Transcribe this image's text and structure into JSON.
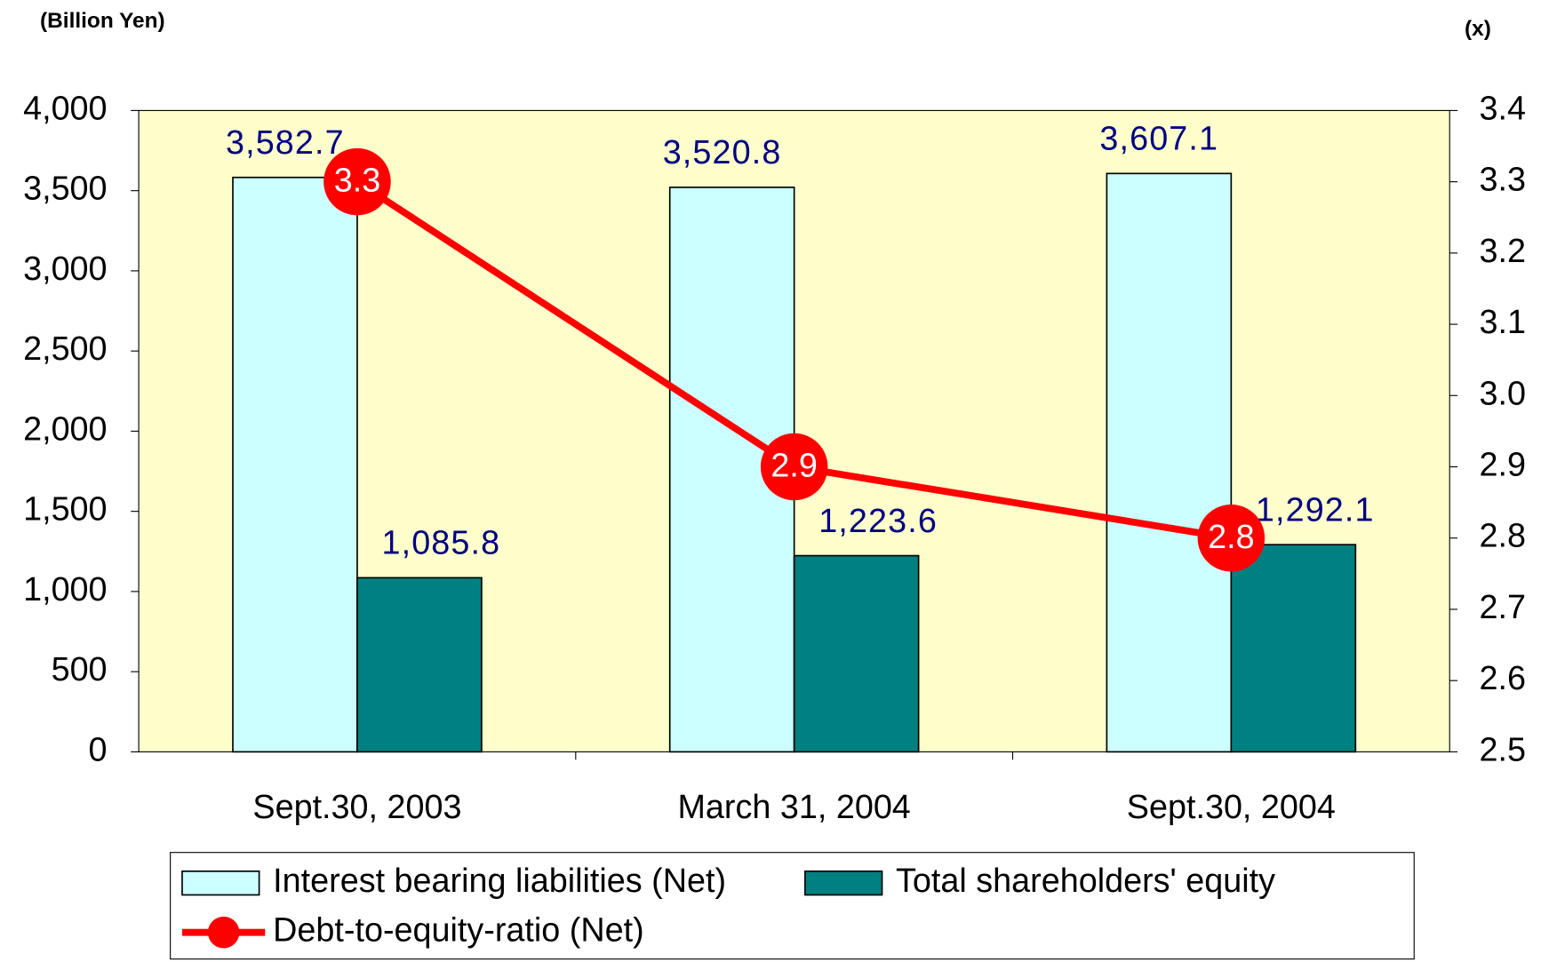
{
  "chart_data": {
    "type": "bar",
    "y_label": "(Billion Yen)",
    "y2_label": "(x)",
    "categories": [
      "Sept.30, 2003",
      "March 31, 2004",
      "Sept.30, 2004"
    ],
    "series": [
      {
        "name": "Interest bearing liabilities (Net)",
        "color": "#ccffff",
        "values": [
          3582.7,
          3520.8,
          3607.1
        ],
        "value_labels": [
          "3,582.7",
          "3,520.8",
          "3,607.1"
        ]
      },
      {
        "name": "Total shareholders' equity",
        "color": "#008080",
        "values": [
          1085.8,
          1223.6,
          1292.1
        ],
        "value_labels": [
          "1,085.8",
          "1,223.6",
          "1,292.1"
        ]
      },
      {
        "name": "Debt-to-equity-ratio (Net)",
        "color": "#ff0000",
        "type": "line",
        "axis": "y2",
        "values": [
          3.3,
          2.9,
          2.8
        ]
      }
    ],
    "ylim": [
      0,
      4000
    ],
    "yticks": [
      0,
      500,
      {
        "value": 1000,
        "label": "1,000"
      },
      {
        "value": 1500,
        "label": "1,500"
      },
      {
        "value": 2000,
        "label": "2,000"
      },
      {
        "value": 2500,
        "label": "2,500"
      },
      {
        "value": 3000,
        "label": "3,000"
      },
      {
        "value": 3500,
        "label": "3,500"
      },
      {
        "value": 4000,
        "label": "4,000"
      }
    ],
    "y2lim": [
      2.5,
      3.4
    ],
    "y2ticks": [
      2.5,
      2.6,
      2.7,
      2.8,
      2.9,
      {
        "value": 3,
        "label": "3.0"
      },
      3.1,
      3.2,
      3.3,
      3.4
    ],
    "plot_background": "#ffffcc",
    "grid": false,
    "legend": "bottom"
  }
}
